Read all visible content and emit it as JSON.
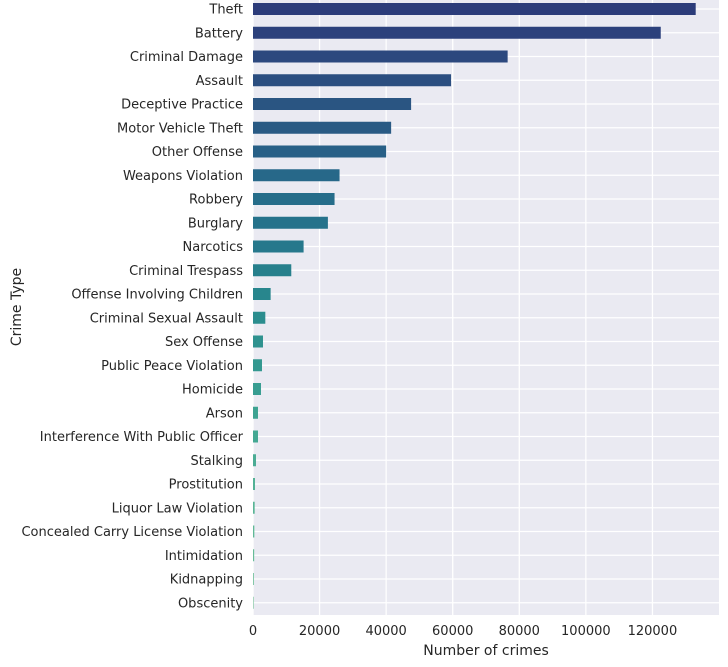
{
  "chart_data": {
    "type": "bar",
    "orientation": "horizontal",
    "xlabel": "Number of crimes",
    "ylabel": "Crime Type",
    "xlim": [
      0,
      140000
    ],
    "xticks": [
      0,
      20000,
      40000,
      60000,
      80000,
      100000,
      120000
    ],
    "grid": true,
    "style": "seaborn-darkgrid",
    "palette": "dark-blue to teal-green gradient",
    "categories": [
      "Theft",
      "Battery",
      "Criminal Damage",
      "Assault",
      "Deceptive Practice",
      "Motor Vehicle Theft",
      "Other Offense",
      "Weapons Violation",
      "Robbery",
      "Burglary",
      "Narcotics",
      "Criminal Trespass",
      "Offense Involving Children",
      "Criminal Sexual Assault",
      "Sex Offense",
      "Public Peace Violation",
      "Homicide",
      "Arson",
      "Interference With Public Officer",
      "Stalking",
      "Prostitution",
      "Liquor Law Violation",
      "Concealed Carry License Violation",
      "Intimidation",
      "Kidnapping",
      "Obscenity"
    ],
    "values": [
      133000,
      122500,
      76500,
      59500,
      47500,
      41500,
      40000,
      26000,
      24500,
      22500,
      15200,
      11500,
      5300,
      3700,
      3000,
      2700,
      2400,
      1500,
      1500,
      900,
      600,
      500,
      400,
      350,
      250,
      60
    ],
    "colors": [
      "#2c3c7a",
      "#2c417c",
      "#2c487e",
      "#2b4e80",
      "#2a5582",
      "#295a84",
      "#286087",
      "#276889",
      "#266d8a",
      "#25728b",
      "#26788c",
      "#27808c",
      "#28868d",
      "#2b8d8e",
      "#2f928f",
      "#339890",
      "#389d91",
      "#3ea392",
      "#44a893",
      "#4bac94",
      "#52b195",
      "#59b596",
      "#60b997",
      "#67bc98",
      "#6fc099",
      "#77c39a"
    ]
  }
}
